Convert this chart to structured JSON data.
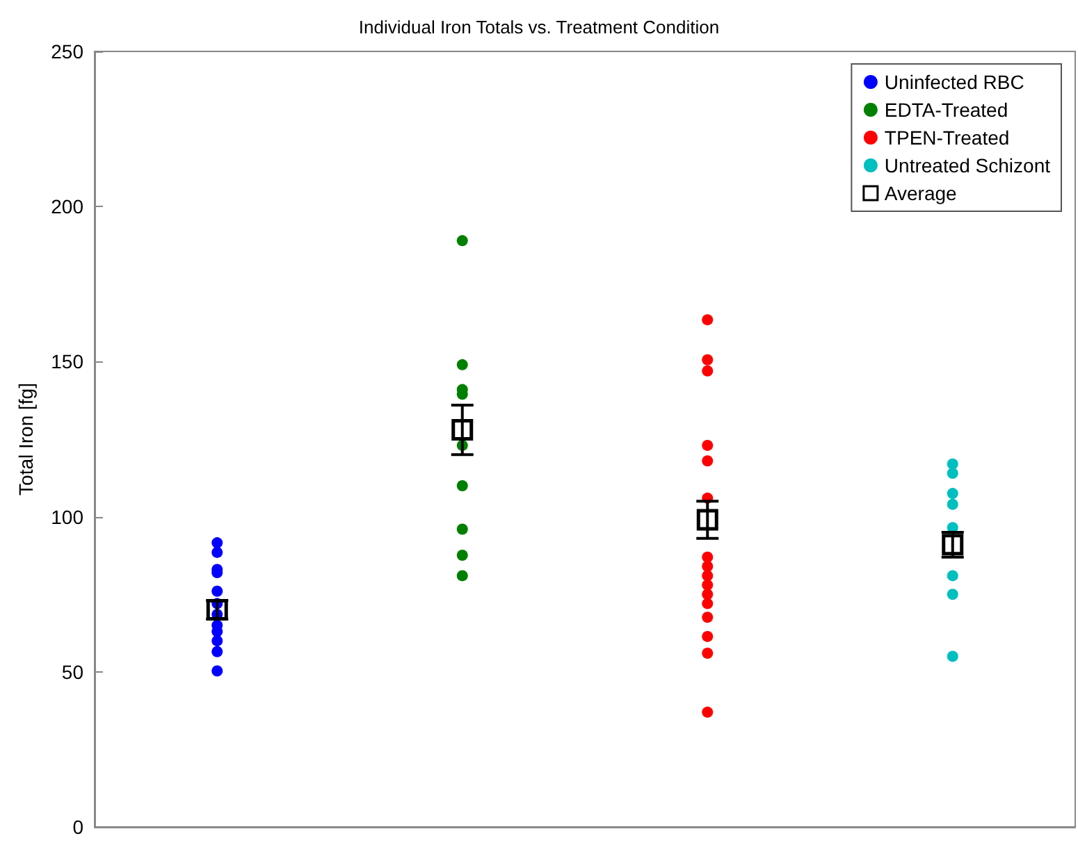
{
  "chart_data": {
    "type": "scatter",
    "title": "Individual Iron Totals vs. Treatment Condition",
    "ylabel": "Total Iron [fg]",
    "categories": [
      null,
      null,
      null,
      null
    ],
    "ylim": [
      0,
      250
    ],
    "yticks": [
      0,
      50,
      100,
      150,
      200,
      250
    ],
    "tick_labels": "y",
    "grid": false,
    "legend": "top right",
    "marker": "circle",
    "series": [
      {
        "name": "Uninfected RBC",
        "color": "#0000ff",
        "values": [
          91.6,
          null,
          null,
          null
        ]
      },
      {
        "color": "#0000ff",
        "values": [
          88.5,
          null,
          null,
          null
        ]
      },
      {
        "color": "#0000ff",
        "values": [
          83,
          null,
          null,
          null
        ]
      },
      {
        "color": "#0000ff",
        "values": [
          82,
          null,
          null,
          null
        ]
      },
      {
        "color": "#0000ff",
        "values": [
          76,
          null,
          null,
          null
        ]
      },
      {
        "color": "#0000ff",
        "values": [
          72,
          null,
          null,
          null
        ]
      },
      {
        "color": "#0000ff",
        "values": [
          68.5,
          null,
          null,
          null
        ]
      },
      {
        "color": "#0000ff",
        "values": [
          65,
          null,
          null,
          null
        ]
      },
      {
        "color": "#0000ff",
        "values": [
          63,
          null,
          null,
          null
        ]
      },
      {
        "color": "#0000ff",
        "values": [
          60,
          null,
          null,
          null
        ]
      },
      {
        "color": "#0000ff",
        "values": [
          56.5,
          null,
          null,
          null
        ]
      },
      {
        "color": "#0000ff",
        "values": [
          50.3,
          null,
          null,
          null
        ]
      },
      {
        "name": "EDTA-Treated",
        "color": "#008000",
        "values": [
          null,
          189,
          null,
          null
        ]
      },
      {
        "color": "#008000",
        "values": [
          null,
          149,
          null,
          null
        ]
      },
      {
        "color": "#008000",
        "values": [
          null,
          141,
          null,
          null
        ]
      },
      {
        "color": "#008000",
        "values": [
          null,
          139.5,
          null,
          null
        ]
      },
      {
        "color": "#008000",
        "values": [
          null,
          123,
          null,
          null
        ]
      },
      {
        "color": "#008000",
        "values": [
          null,
          110,
          null,
          null
        ]
      },
      {
        "color": "#008000",
        "values": [
          null,
          96,
          null,
          null
        ]
      },
      {
        "color": "#008000",
        "values": [
          null,
          87.6,
          null,
          null
        ]
      },
      {
        "color": "#008000",
        "values": [
          null,
          81,
          null,
          null
        ]
      },
      {
        "name": "TPEN-Treated",
        "color": "#ff0000",
        "values": [
          null,
          null,
          163.5,
          null
        ]
      },
      {
        "color": "#ff0000",
        "values": [
          null,
          null,
          150.6,
          null
        ]
      },
      {
        "color": "#ff0000",
        "values": [
          null,
          null,
          147,
          null
        ]
      },
      {
        "color": "#ff0000",
        "values": [
          null,
          null,
          123,
          null
        ]
      },
      {
        "color": "#ff0000",
        "values": [
          null,
          null,
          118,
          null
        ]
      },
      {
        "color": "#ff0000",
        "values": [
          null,
          null,
          106,
          null
        ]
      },
      {
        "color": "#ff0000",
        "values": [
          null,
          null,
          87,
          null
        ]
      },
      {
        "color": "#ff0000",
        "values": [
          null,
          null,
          84,
          null
        ]
      },
      {
        "color": "#ff0000",
        "values": [
          null,
          null,
          81,
          null
        ]
      },
      {
        "color": "#ff0000",
        "values": [
          null,
          null,
          78,
          null
        ]
      },
      {
        "color": "#ff0000",
        "values": [
          null,
          null,
          75,
          null
        ]
      },
      {
        "color": "#ff0000",
        "values": [
          null,
          null,
          72,
          null
        ]
      },
      {
        "color": "#ff0000",
        "values": [
          null,
          null,
          67.6,
          null
        ]
      },
      {
        "color": "#ff0000",
        "values": [
          null,
          null,
          61.4,
          null
        ]
      },
      {
        "color": "#ff0000",
        "values": [
          null,
          null,
          56,
          null
        ]
      },
      {
        "color": "#ff0000",
        "values": [
          null,
          null,
          37,
          null
        ]
      },
      {
        "name": "Untreated Schizont",
        "color": "#00bfbf",
        "values": [
          null,
          null,
          null,
          117
        ]
      },
      {
        "color": "#00bfbf",
        "values": [
          null,
          null,
          null,
          114
        ]
      },
      {
        "color": "#00bfbf",
        "values": [
          null,
          null,
          null,
          107.5
        ]
      },
      {
        "color": "#00bfbf",
        "values": [
          null,
          null,
          null,
          104
        ]
      },
      {
        "color": "#00bfbf",
        "values": [
          null,
          null,
          null,
          96.5
        ]
      },
      {
        "color": "#00bfbf",
        "values": [
          null,
          null,
          null,
          81
        ]
      },
      {
        "color": "#00bfbf",
        "values": [
          null,
          null,
          null,
          75
        ]
      },
      {
        "color": "#00bfbf",
        "values": [
          null,
          null,
          null,
          55
        ]
      },
      {
        "name": "Average",
        "color": "#000000",
        "marker": "square",
        "values": [
          70,
          128,
          99,
          91
        ],
        "errors": [
          3,
          8,
          6,
          4
        ]
      }
    ]
  }
}
